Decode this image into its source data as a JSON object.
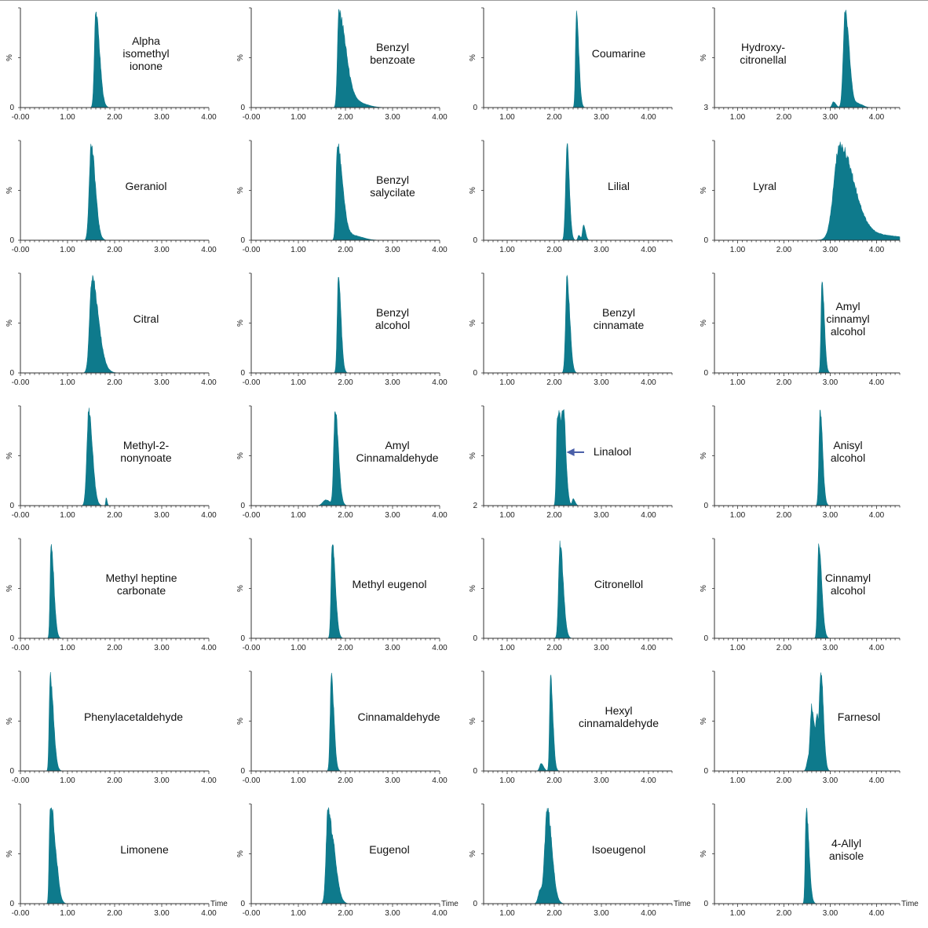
{
  "figure": {
    "colors": {
      "trace": "#0e7a8c",
      "axis": "#333333",
      "arrow": "#4a5fa8"
    },
    "y_axis_label": "%",
    "x_axis_label": "Time"
  },
  "chart_data": [
    {
      "type": "area",
      "title": "Alpha isomethyl ionone",
      "label_lines": [
        "Alpha",
        "isomethyl",
        "ionone"
      ],
      "x_ticks": [
        "-0.00",
        "1.00",
        "2.00",
        "3.00",
        "4.00"
      ],
      "xlim": [
        0,
        4.0
      ],
      "y_min_label": "0",
      "ylim": [
        0,
        100
      ],
      "peaks": [
        {
          "x": 1.6,
          "y": 100,
          "w": 0.03,
          "tail": 0.05
        }
      ]
    },
    {
      "type": "area",
      "title": "Benzyl benzoate",
      "label_lines": [
        "Benzyl",
        "benzoate"
      ],
      "x_ticks": [
        "-0.00",
        "1.00",
        "2.00",
        "3.00",
        "4.00"
      ],
      "xlim": [
        0,
        4.0
      ],
      "y_min_label": "0",
      "ylim": [
        0,
        100
      ],
      "peaks": [
        {
          "x": 1.86,
          "y": 100,
          "w": 0.03,
          "tail": 0.12
        },
        {
          "x": 2.2,
          "y": 6,
          "w": 0.12,
          "tail": 0.1
        }
      ]
    },
    {
      "type": "area",
      "title": "Coumarine",
      "label_lines": [
        "Coumarine"
      ],
      "x_ticks": [
        "1.00",
        "2.00",
        "3.00",
        "4.00"
      ],
      "xlim": [
        0.5,
        4.5
      ],
      "y_min_label": "0",
      "ylim": [
        0,
        100
      ],
      "peaks": [
        {
          "x": 2.47,
          "y": 100,
          "w": 0.02,
          "tail": 0.03
        }
      ]
    },
    {
      "type": "area",
      "title": "Hydroxy-citronellal",
      "label_lines": [
        "Hydroxy-",
        "citronellal"
      ],
      "x_ticks": [
        "1.00",
        "2.00",
        "3.00",
        "4.00"
      ],
      "xlim": [
        0.5,
        4.5
      ],
      "y_min_label": "3",
      "ylim": [
        0,
        100
      ],
      "peaks": [
        {
          "x": 3.32,
          "y": 100,
          "w": 0.04,
          "tail": 0.05
        },
        {
          "x": 3.07,
          "y": 6,
          "w": 0.03,
          "tail": 0.02
        },
        {
          "x": 3.6,
          "y": 4,
          "w": 0.05,
          "tail": 0.05
        }
      ]
    },
    {
      "type": "area",
      "title": "Geraniol",
      "label_lines": [
        "Geraniol"
      ],
      "x_ticks": [
        "-0.00",
        "1.00",
        "2.00",
        "3.00",
        "4.00"
      ],
      "xlim": [
        0,
        4.0
      ],
      "y_min_label": "0",
      "ylim": [
        0,
        100
      ],
      "peaks": [
        {
          "x": 1.5,
          "y": 100,
          "w": 0.04,
          "tail": 0.05
        }
      ]
    },
    {
      "type": "area",
      "title": "Benzyl salycilate",
      "label_lines": [
        "Benzyl",
        "salycilate"
      ],
      "x_ticks": [
        "-0.00",
        "1.00",
        "2.00",
        "3.00",
        "4.00"
      ],
      "xlim": [
        0,
        4.0
      ],
      "y_min_label": "0",
      "ylim": [
        0,
        100
      ],
      "peaks": [
        {
          "x": 1.83,
          "y": 100,
          "w": 0.03,
          "tail": 0.08
        },
        {
          "x": 2.15,
          "y": 5,
          "w": 0.1,
          "tail": 0.1
        }
      ]
    },
    {
      "type": "area",
      "title": "Lilial",
      "label_lines": [
        "Lilial"
      ],
      "x_ticks": [
        "1.00",
        "2.00",
        "3.00",
        "4.00"
      ],
      "xlim": [
        0.5,
        4.5
      ],
      "y_min_label": "0",
      "ylim": [
        0,
        100
      ],
      "peaks": [
        {
          "x": 2.27,
          "y": 100,
          "w": 0.03,
          "tail": 0.02
        },
        {
          "x": 2.62,
          "y": 16,
          "w": 0.02,
          "tail": 0.02
        },
        {
          "x": 2.52,
          "y": 5,
          "w": 0.02,
          "tail": 0.02
        }
      ]
    },
    {
      "type": "area",
      "title": "Lyral",
      "label_lines": [
        "Lyral"
      ],
      "x_ticks": [
        "1.00",
        "2.00",
        "3.00",
        "4.00"
      ],
      "xlim": [
        0.5,
        4.5
      ],
      "y_min_label": "0",
      "ylim": [
        0,
        100
      ],
      "peaks": [
        {
          "x": 3.2,
          "y": 98,
          "w": 0.12,
          "tail": 0.18
        },
        {
          "x": 3.8,
          "y": 6,
          "w": 0.4,
          "tail": 0.3
        }
      ]
    },
    {
      "type": "area",
      "title": "Citral",
      "label_lines": [
        "Citral"
      ],
      "x_ticks": [
        "-0.00",
        "1.00",
        "2.00",
        "3.00",
        "4.00"
      ],
      "xlim": [
        0,
        4.0
      ],
      "y_min_label": "0",
      "ylim": [
        0,
        100
      ],
      "peaks": [
        {
          "x": 1.52,
          "y": 100,
          "w": 0.05,
          "tail": 0.08
        },
        {
          "x": 1.75,
          "y": 4,
          "w": 0.06,
          "tail": 0.05
        }
      ]
    },
    {
      "type": "area",
      "title": "Benzyl alcohol",
      "label_lines": [
        "Benzyl",
        "alcohol"
      ],
      "x_ticks": [
        "-0.00",
        "1.00",
        "2.00",
        "3.00",
        "4.00"
      ],
      "xlim": [
        0,
        4.0
      ],
      "y_min_label": "0",
      "ylim": [
        0,
        100
      ],
      "peaks": [
        {
          "x": 1.85,
          "y": 100,
          "w": 0.025,
          "tail": 0.03
        }
      ]
    },
    {
      "type": "area",
      "title": "Benzyl cinnamate",
      "label_lines": [
        "Benzyl",
        "cinnamate"
      ],
      "x_ticks": [
        "1.00",
        "2.00",
        "3.00",
        "4.00"
      ],
      "xlim": [
        0.5,
        4.5
      ],
      "y_min_label": "0",
      "ylim": [
        0,
        100
      ],
      "peaks": [
        {
          "x": 2.27,
          "y": 100,
          "w": 0.03,
          "tail": 0.03
        }
      ]
    },
    {
      "type": "area",
      "title": "Amyl cinnamyl alcohol",
      "label_lines": [
        "Amyl",
        "cinnamyl",
        "alcohol"
      ],
      "x_ticks": [
        "1.00",
        "2.00",
        "3.00",
        "4.00"
      ],
      "xlim": [
        0.5,
        4.5
      ],
      "y_min_label": "0",
      "ylim": [
        0,
        100
      ],
      "peaks": [
        {
          "x": 2.82,
          "y": 100,
          "w": 0.02,
          "tail": 0.03
        }
      ]
    },
    {
      "type": "area",
      "title": "Methyl-2-nonynoate",
      "label_lines": [
        "Methyl-2-",
        "nonynoate"
      ],
      "x_ticks": [
        "-0.00",
        "1.00",
        "2.00",
        "3.00",
        "4.00"
      ],
      "xlim": [
        0,
        4.0
      ],
      "y_min_label": "0",
      "ylim": [
        0,
        100
      ],
      "peaks": [
        {
          "x": 1.45,
          "y": 100,
          "w": 0.04,
          "tail": 0.04
        },
        {
          "x": 1.82,
          "y": 8,
          "w": 0.01,
          "tail": 0.01
        }
      ]
    },
    {
      "type": "area",
      "title": "Amyl Cinnamaldehyde",
      "label_lines": [
        "Amyl",
        "Cinnamaldehyde"
      ],
      "x_ticks": [
        "-0.00",
        "1.00",
        "2.00",
        "3.00",
        "4.00"
      ],
      "xlim": [
        0,
        4.0
      ],
      "y_min_label": "0",
      "ylim": [
        0,
        100
      ],
      "peaks": [
        {
          "x": 1.78,
          "y": 100,
          "w": 0.03,
          "tail": 0.04
        },
        {
          "x": 1.58,
          "y": 6,
          "w": 0.06,
          "tail": 0.04
        }
      ]
    },
    {
      "type": "area",
      "title": "Linalool",
      "label_lines": [
        "Linalool"
      ],
      "x_ticks": [
        "1.00",
        "2.00",
        "3.00",
        "4.00"
      ],
      "xlim": [
        0.5,
        4.5
      ],
      "y_min_label": "2",
      "ylim": [
        0,
        100
      ],
      "peaks": [
        {
          "x": 2.18,
          "y": 100,
          "w": 0.02,
          "tail": 0.04
        },
        {
          "x": 2.06,
          "y": 72,
          "w": 0.02,
          "tail": 0.03
        },
        {
          "x": 2.11,
          "y": 60,
          "w": 0.03,
          "tail": 0.03
        },
        {
          "x": 2.4,
          "y": 7,
          "w": 0.02,
          "tail": 0.02
        }
      ],
      "arrow": true
    },
    {
      "type": "area",
      "title": "Anisyl alcohol",
      "label_lines": [
        "Anisyl",
        "alcohol"
      ],
      "x_ticks": [
        "1.00",
        "2.00",
        "3.00",
        "4.00"
      ],
      "xlim": [
        0.5,
        4.5
      ],
      "y_min_label": "0",
      "ylim": [
        0,
        100
      ],
      "peaks": [
        {
          "x": 2.78,
          "y": 100,
          "w": 0.025,
          "tail": 0.03
        }
      ]
    },
    {
      "type": "area",
      "title": "Methyl heptine carbonate",
      "label_lines": [
        "Methyl heptine",
        "carbonate"
      ],
      "x_ticks": [
        "-0.00",
        "1.00",
        "2.00",
        "3.00",
        "4.00"
      ],
      "xlim": [
        0,
        4.0
      ],
      "y_min_label": "0",
      "ylim": [
        0,
        100
      ],
      "peaks": [
        {
          "x": 0.65,
          "y": 100,
          "w": 0.02,
          "tail": 0.04
        }
      ]
    },
    {
      "type": "area",
      "title": "Methyl eugenol",
      "label_lines": [
        "Methyl eugenol"
      ],
      "x_ticks": [
        "-0.00",
        "1.00",
        "2.00",
        "3.00",
        "4.00"
      ],
      "xlim": [
        0,
        4.0
      ],
      "y_min_label": "0",
      "ylim": [
        0,
        100
      ],
      "peaks": [
        {
          "x": 1.72,
          "y": 100,
          "w": 0.025,
          "tail": 0.04
        }
      ]
    },
    {
      "type": "area",
      "title": "Citronellol",
      "label_lines": [
        "Citronellol"
      ],
      "x_ticks": [
        "1.00",
        "2.00",
        "3.00",
        "4.00"
      ],
      "xlim": [
        0.5,
        4.5
      ],
      "y_min_label": "0",
      "ylim": [
        0,
        100
      ],
      "peaks": [
        {
          "x": 2.12,
          "y": 100,
          "w": 0.03,
          "tail": 0.04
        }
      ]
    },
    {
      "type": "area",
      "title": "Cinnamyl alcohol",
      "label_lines": [
        "Cinnamyl",
        "alcohol"
      ],
      "x_ticks": [
        "1.00",
        "2.00",
        "3.00",
        "4.00"
      ],
      "xlim": [
        0.5,
        4.5
      ],
      "y_min_label": "0",
      "ylim": [
        0,
        100
      ],
      "peaks": [
        {
          "x": 2.75,
          "y": 100,
          "w": 0.025,
          "tail": 0.04
        }
      ]
    },
    {
      "type": "area",
      "title": "Phenylacetaldehyde",
      "label_lines": [
        "Phenylacetaldehyde"
      ],
      "x_ticks": [
        "-0.00",
        "1.00",
        "2.00",
        "3.00",
        "4.00"
      ],
      "xlim": [
        0,
        4.0
      ],
      "y_min_label": "0",
      "ylim": [
        0,
        100
      ],
      "peaks": [
        {
          "x": 0.63,
          "y": 100,
          "w": 0.02,
          "tail": 0.05
        }
      ]
    },
    {
      "type": "area",
      "title": "Cinnamaldehyde",
      "label_lines": [
        "Cinnamaldehyde"
      ],
      "x_ticks": [
        "-0.00",
        "1.00",
        "2.00",
        "3.00",
        "4.00"
      ],
      "xlim": [
        0,
        4.0
      ],
      "y_min_label": "0",
      "ylim": [
        0,
        100
      ],
      "peaks": [
        {
          "x": 1.7,
          "y": 100,
          "w": 0.025,
          "tail": 0.03
        }
      ]
    },
    {
      "type": "area",
      "title": "Hexyl cinnamaldehyde",
      "label_lines": [
        "Hexyl",
        "cinnamaldehyde"
      ],
      "x_ticks": [
        "1.00",
        "2.00",
        "3.00",
        "4.00"
      ],
      "xlim": [
        0.5,
        4.5
      ],
      "y_min_label": "0",
      "ylim": [
        0,
        100
      ],
      "peaks": [
        {
          "x": 1.92,
          "y": 100,
          "w": 0.02,
          "tail": 0.03
        },
        {
          "x": 1.72,
          "y": 8,
          "w": 0.03,
          "tail": 0.02
        }
      ]
    },
    {
      "type": "area",
      "title": "Farnesol",
      "label_lines": [
        "Farnesol"
      ],
      "x_ticks": [
        "1.00",
        "2.00",
        "3.00",
        "4.00"
      ],
      "xlim": [
        0.5,
        4.5
      ],
      "y_min_label": "0",
      "ylim": [
        0,
        100
      ],
      "peaks": [
        {
          "x": 2.8,
          "y": 100,
          "w": 0.025,
          "tail": 0.03
        },
        {
          "x": 2.6,
          "y": 65,
          "w": 0.03,
          "tail": 0.03
        },
        {
          "x": 2.72,
          "y": 50,
          "w": 0.03,
          "tail": 0.02
        },
        {
          "x": 2.52,
          "y": 12,
          "w": 0.03,
          "tail": 0.02
        }
      ]
    },
    {
      "type": "area",
      "title": "Limonene",
      "label_lines": [
        "Limonene"
      ],
      "x_ticks": [
        "-0.00",
        "1.00",
        "2.00",
        "3.00",
        "4.00"
      ],
      "xlim": [
        0,
        4.0
      ],
      "y_min_label": "0",
      "ylim": [
        0,
        100
      ],
      "peaks": [
        {
          "x": 0.63,
          "y": 100,
          "w": 0.02,
          "tail": 0.02
        },
        {
          "x": 0.7,
          "y": 70,
          "w": 0.03,
          "tail": 0.05
        }
      ],
      "x_title": "Time"
    },
    {
      "type": "area",
      "title": "Eugenol",
      "label_lines": [
        "Eugenol"
      ],
      "x_ticks": [
        "-0.00",
        "1.00",
        "2.00",
        "3.00",
        "4.00"
      ],
      "xlim": [
        0,
        4.0
      ],
      "y_min_label": "0",
      "ylim": [
        0,
        100
      ],
      "peaks": [
        {
          "x": 1.63,
          "y": 100,
          "w": 0.04,
          "tail": 0.06
        },
        {
          "x": 1.78,
          "y": 20,
          "w": 0.04,
          "tail": 0.05
        }
      ],
      "x_title": "Time"
    },
    {
      "type": "area",
      "title": "Isoeugenol",
      "label_lines": [
        "Isoeugenol"
      ],
      "x_ticks": [
        "1.00",
        "2.00",
        "3.00",
        "4.00"
      ],
      "xlim": [
        0.5,
        4.5
      ],
      "y_min_label": "0",
      "ylim": [
        0,
        100
      ],
      "peaks": [
        {
          "x": 1.85,
          "y": 100,
          "w": 0.05,
          "tail": 0.05
        },
        {
          "x": 1.7,
          "y": 14,
          "w": 0.04,
          "tail": 0.02
        }
      ],
      "x_title": "Time"
    },
    {
      "type": "area",
      "title": "4-Allyl anisole",
      "label_lines": [
        "4-Allyl",
        "anisole"
      ],
      "x_ticks": [
        "1.00",
        "2.00",
        "3.00",
        "4.00"
      ],
      "xlim": [
        0.5,
        4.5
      ],
      "y_min_label": "0",
      "ylim": [
        0,
        100
      ],
      "peaks": [
        {
          "x": 2.48,
          "y": 100,
          "w": 0.02,
          "tail": 0.04
        }
      ],
      "x_title": "Time"
    }
  ]
}
